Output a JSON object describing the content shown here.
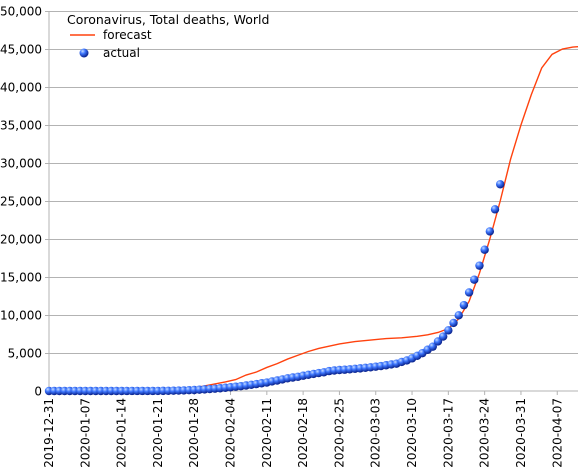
{
  "chart_data": {
    "type": "line",
    "title": "Coronavirus, Total deaths, World",
    "xlabel": "",
    "ylabel": "",
    "x_start": "2019-12-31",
    "x_end": "2020-04-11",
    "xlim": [
      "2019-12-31",
      "2020-04-11"
    ],
    "ylim": [
      0,
      50000
    ],
    "y_ticks": [
      0,
      5000,
      10000,
      15000,
      20000,
      25000,
      30000,
      35000,
      40000,
      45000,
      50000
    ],
    "y_tick_labels": [
      "0",
      "5,000",
      "10,000",
      "15,000",
      "20,000",
      "25,000",
      "30,000",
      "35,000",
      "40,000",
      "45,000",
      "50,000"
    ],
    "x_tick_labels": [
      "2019-12-31",
      "2020-01-07",
      "2020-01-14",
      "2020-01-21",
      "2020-01-28",
      "2020-02-04",
      "2020-02-11",
      "2020-02-18",
      "2020-02-25",
      "2020-03-03",
      "2020-03-10",
      "2020-03-17",
      "2020-03-24",
      "2020-03-31",
      "2020-04-07"
    ],
    "grid": "horizontal",
    "legend": "top-left",
    "colors": {
      "forecast": "#ff420e",
      "actual": "#1c4fd8",
      "grid": "#b3b3b3"
    },
    "series": [
      {
        "name": "forecast",
        "style": "line",
        "points": [
          [
            "2019-12-31",
            0
          ],
          [
            "2020-01-10",
            0
          ],
          [
            "2020-01-22",
            20
          ],
          [
            "2020-01-26",
            150
          ],
          [
            "2020-01-28",
            400
          ],
          [
            "2020-01-31",
            800
          ],
          [
            "2020-02-03",
            1200
          ],
          [
            "2020-02-05",
            1500
          ],
          [
            "2020-02-07",
            2100
          ],
          [
            "2020-02-09",
            2500
          ],
          [
            "2020-02-11",
            3100
          ],
          [
            "2020-02-13",
            3600
          ],
          [
            "2020-02-15",
            4200
          ],
          [
            "2020-02-17",
            4700
          ],
          [
            "2020-02-19",
            5200
          ],
          [
            "2020-02-21",
            5600
          ],
          [
            "2020-02-23",
            5900
          ],
          [
            "2020-02-25",
            6200
          ],
          [
            "2020-02-28",
            6500
          ],
          [
            "2020-03-02",
            6700
          ],
          [
            "2020-03-05",
            6900
          ],
          [
            "2020-03-08",
            7000
          ],
          [
            "2020-03-11",
            7200
          ],
          [
            "2020-03-13",
            7400
          ],
          [
            "2020-03-15",
            7700
          ],
          [
            "2020-03-17",
            8200
          ],
          [
            "2020-03-19",
            9500
          ],
          [
            "2020-03-21",
            11800
          ],
          [
            "2020-03-23",
            15500
          ],
          [
            "2020-03-25",
            20000
          ],
          [
            "2020-03-27",
            25000
          ],
          [
            "2020-03-29",
            30500
          ],
          [
            "2020-03-31",
            35000
          ],
          [
            "2020-04-02",
            39000
          ],
          [
            "2020-04-04",
            42500
          ],
          [
            "2020-04-06",
            44300
          ],
          [
            "2020-04-08",
            45000
          ],
          [
            "2020-04-10",
            45250
          ],
          [
            "2020-04-11",
            45300
          ]
        ]
      },
      {
        "name": "actual",
        "style": "markers",
        "points": [
          [
            "2019-12-31",
            0
          ],
          [
            "2020-01-01",
            0
          ],
          [
            "2020-01-02",
            0
          ],
          [
            "2020-01-03",
            0
          ],
          [
            "2020-01-04",
            0
          ],
          [
            "2020-01-05",
            0
          ],
          [
            "2020-01-06",
            0
          ],
          [
            "2020-01-07",
            0
          ],
          [
            "2020-01-08",
            0
          ],
          [
            "2020-01-09",
            0
          ],
          [
            "2020-01-10",
            1
          ],
          [
            "2020-01-11",
            1
          ],
          [
            "2020-01-12",
            1
          ],
          [
            "2020-01-13",
            1
          ],
          [
            "2020-01-14",
            1
          ],
          [
            "2020-01-15",
            2
          ],
          [
            "2020-01-16",
            2
          ],
          [
            "2020-01-17",
            3
          ],
          [
            "2020-01-18",
            3
          ],
          [
            "2020-01-19",
            3
          ],
          [
            "2020-01-20",
            3
          ],
          [
            "2020-01-21",
            6
          ],
          [
            "2020-01-22",
            17
          ],
          [
            "2020-01-23",
            25
          ],
          [
            "2020-01-24",
            41
          ],
          [
            "2020-01-25",
            56
          ],
          [
            "2020-01-26",
            80
          ],
          [
            "2020-01-27",
            106
          ],
          [
            "2020-01-28",
            132
          ],
          [
            "2020-01-29",
            170
          ],
          [
            "2020-01-30",
            213
          ],
          [
            "2020-01-31",
            259
          ],
          [
            "2020-02-01",
            304
          ],
          [
            "2020-02-02",
            362
          ],
          [
            "2020-02-03",
            426
          ],
          [
            "2020-02-04",
            492
          ],
          [
            "2020-02-05",
            565
          ],
          [
            "2020-02-06",
            638
          ],
          [
            "2020-02-07",
            724
          ],
          [
            "2020-02-08",
            813
          ],
          [
            "2020-02-09",
            910
          ],
          [
            "2020-02-10",
            1018
          ],
          [
            "2020-02-11",
            1115
          ],
          [
            "2020-02-12",
            1261
          ],
          [
            "2020-02-13",
            1383
          ],
          [
            "2020-02-14",
            1526
          ],
          [
            "2020-02-15",
            1669
          ],
          [
            "2020-02-16",
            1775
          ],
          [
            "2020-02-17",
            1873
          ],
          [
            "2020-02-18",
            2009
          ],
          [
            "2020-02-19",
            2126
          ],
          [
            "2020-02-20",
            2247
          ],
          [
            "2020-02-21",
            2360
          ],
          [
            "2020-02-22",
            2460
          ],
          [
            "2020-02-23",
            2618
          ],
          [
            "2020-02-24",
            2699
          ],
          [
            "2020-02-25",
            2763
          ],
          [
            "2020-02-26",
            2800
          ],
          [
            "2020-02-27",
            2858
          ],
          [
            "2020-02-28",
            2923
          ],
          [
            "2020-02-29",
            2977
          ],
          [
            "2020-03-01",
            3050
          ],
          [
            "2020-03-02",
            3117
          ],
          [
            "2020-03-03",
            3202
          ],
          [
            "2020-03-04",
            3285
          ],
          [
            "2020-03-05",
            3387
          ],
          [
            "2020-03-06",
            3494
          ],
          [
            "2020-03-07",
            3599
          ],
          [
            "2020-03-08",
            3827
          ],
          [
            "2020-03-09",
            4025
          ],
          [
            "2020-03-10",
            4296
          ],
          [
            "2020-03-11",
            4628
          ],
          [
            "2020-03-12",
            4981
          ],
          [
            "2020-03-13",
            5428
          ],
          [
            "2020-03-14",
            5833
          ],
          [
            "2020-03-15",
            6520
          ],
          [
            "2020-03-16",
            7162
          ],
          [
            "2020-03-17",
            7979
          ],
          [
            "2020-03-18",
            8958
          ],
          [
            "2020-03-19",
            9955
          ],
          [
            "2020-03-20",
            11298
          ],
          [
            "2020-03-21",
            12967
          ],
          [
            "2020-03-22",
            14643
          ],
          [
            "2020-03-23",
            16495
          ],
          [
            "2020-03-24",
            18589
          ],
          [
            "2020-03-25",
            21000
          ],
          [
            "2020-03-26",
            23900
          ],
          [
            "2020-03-27",
            27200
          ]
        ]
      }
    ]
  }
}
